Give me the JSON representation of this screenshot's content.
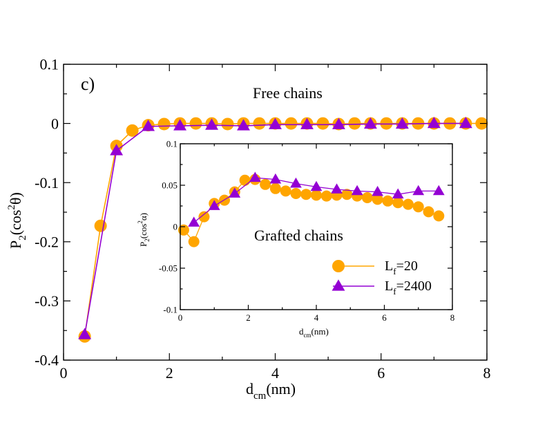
{
  "colors": {
    "orange": "#ffa500",
    "purple": "#9400d3",
    "axis": "#000000"
  },
  "chart_data": [
    {
      "type": "line",
      "panel_label": "c)",
      "annotation": "Free chains",
      "ylabel_base": "P",
      "ylabel_sub": "2",
      "ylabel_arg_open": "(cos",
      "ylabel_sup": "2",
      "ylabel_arg_close": "θ)",
      "xlabel_base": "d",
      "xlabel_sub": "cm",
      "xlabel_rest": "(nm)",
      "xlim": [
        0,
        8
      ],
      "ylim": [
        -0.4,
        0.1
      ],
      "xticks": [
        0,
        2,
        4,
        6,
        8
      ],
      "xtick_labels": [
        "0",
        "2",
        "4",
        "6",
        "8"
      ],
      "yticks": [
        -0.4,
        -0.3,
        -0.2,
        -0.1,
        0,
        0.1
      ],
      "ytick_labels": [
        "-0.4",
        "-0.3",
        "-0.2",
        "-0.1",
        "0",
        "0.1"
      ],
      "series": [
        {
          "name": "L_f=20",
          "marker": "circle",
          "color": "#ffa500",
          "x": [
            0.4,
            0.7,
            1.0,
            1.3,
            1.6,
            1.9,
            2.2,
            2.5,
            2.8,
            3.1,
            3.4,
            3.7,
            4.0,
            4.3,
            4.6,
            4.9,
            5.2,
            5.5,
            5.8,
            6.1,
            6.4,
            6.7,
            7.0,
            7.3,
            7.6,
            7.9
          ],
          "y": [
            -0.36,
            -0.173,
            -0.038,
            -0.012,
            -0.003,
            -0.001,
            0.0,
            0.0,
            0.0,
            -0.001,
            0.0,
            0.0,
            0.0,
            0.0,
            0.0,
            0.0,
            -0.001,
            0.0,
            0.0,
            0.0,
            0.0,
            0.0,
            0.0,
            0.0,
            0.0,
            0.0
          ]
        },
        {
          "name": "L_f=2400",
          "marker": "triangle",
          "color": "#9400d3",
          "x": [
            0.4,
            1.0,
            1.6,
            2.2,
            2.8,
            3.4,
            4.0,
            4.6,
            5.2,
            5.8,
            6.4,
            7.0,
            7.6
          ],
          "y": [
            -0.357,
            -0.046,
            -0.005,
            -0.004,
            -0.003,
            -0.004,
            -0.002,
            -0.002,
            -0.002,
            -0.001,
            -0.001,
            0.0,
            0.0
          ]
        }
      ]
    },
    {
      "type": "line",
      "annotation": "Grafted chains",
      "ylabel_base": "P",
      "ylabel_sub": "2",
      "ylabel_arg_open": "(cos",
      "ylabel_sup": "2",
      "ylabel_arg_close": "α)",
      "xlabel_base": "d",
      "xlabel_sub": "cm",
      "xlabel_rest": "(nm)",
      "xlim": [
        0,
        8
      ],
      "ylim": [
        -0.1,
        0.1
      ],
      "xticks": [
        0,
        2,
        4,
        6,
        8
      ],
      "xtick_labels": [
        "0",
        "2",
        "4",
        "6",
        "8"
      ],
      "yticks": [
        -0.1,
        -0.05,
        0,
        0.05,
        0.1
      ],
      "ytick_labels": [
        "-0.1",
        "-0.05",
        "0",
        "0.05",
        "0.1"
      ],
      "legend_position": "lower-right",
      "legend": [
        {
          "base": "L",
          "sub": "f",
          "rest": "=20",
          "marker": "circle",
          "color": "#ffa500"
        },
        {
          "base": "L",
          "sub": "f",
          "rest": "=2400",
          "marker": "triangle",
          "color": "#9400d3"
        }
      ],
      "series": [
        {
          "name": "L_f=20",
          "marker": "circle",
          "color": "#ffa500",
          "x": [
            0.1,
            0.4,
            0.7,
            1.0,
            1.3,
            1.6,
            1.9,
            2.2,
            2.5,
            2.8,
            3.1,
            3.4,
            3.7,
            4.0,
            4.3,
            4.6,
            4.9,
            5.2,
            5.5,
            5.8,
            6.1,
            6.4,
            6.7,
            7.0,
            7.3,
            7.6
          ],
          "y": [
            -0.004,
            -0.018,
            0.012,
            0.028,
            0.032,
            0.042,
            0.056,
            0.057,
            0.051,
            0.046,
            0.043,
            0.04,
            0.039,
            0.038,
            0.037,
            0.038,
            0.039,
            0.037,
            0.035,
            0.033,
            0.031,
            0.029,
            0.027,
            0.024,
            0.018,
            0.013
          ]
        },
        {
          "name": "L_f=2400",
          "marker": "triangle",
          "color": "#9400d3",
          "x": [
            0.4,
            1.0,
            1.6,
            2.2,
            2.8,
            3.4,
            4.0,
            4.6,
            5.2,
            5.8,
            6.4,
            7.0,
            7.6
          ],
          "y": [
            0.005,
            0.025,
            0.04,
            0.059,
            0.057,
            0.052,
            0.048,
            0.045,
            0.043,
            0.042,
            0.039,
            0.043,
            0.043
          ]
        }
      ]
    }
  ]
}
